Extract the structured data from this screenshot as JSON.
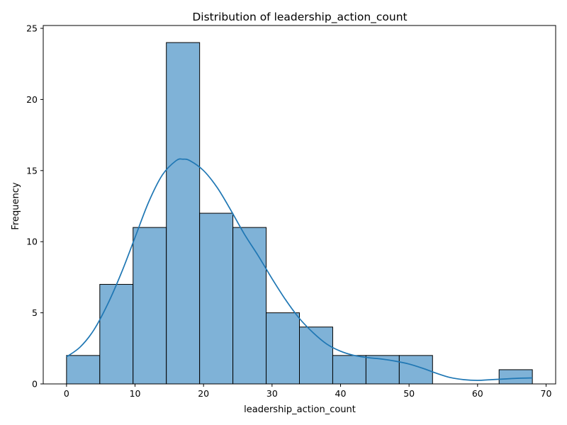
{
  "chart_data": {
    "type": "bar",
    "subtype": "histogram",
    "title": "Distribution of leadership_action_count",
    "xlabel": "leadership_action_count",
    "ylabel": "Frequency",
    "xlim": [
      -3.4,
      71.4
    ],
    "ylim": [
      0,
      25.2
    ],
    "xticks": [
      0,
      10,
      20,
      30,
      40,
      50,
      60,
      70
    ],
    "yticks": [
      0,
      5,
      10,
      15,
      20,
      25
    ],
    "grid": false,
    "bins": [
      {
        "x0": 0.0,
        "x1": 4.857,
        "count": 2
      },
      {
        "x0": 4.857,
        "x1": 9.714,
        "count": 7
      },
      {
        "x0": 9.714,
        "x1": 14.571,
        "count": 11
      },
      {
        "x0": 14.571,
        "x1": 19.429,
        "count": 24
      },
      {
        "x0": 19.429,
        "x1": 24.286,
        "count": 12
      },
      {
        "x0": 24.286,
        "x1": 29.143,
        "count": 11
      },
      {
        "x0": 29.143,
        "x1": 34.0,
        "count": 5
      },
      {
        "x0": 34.0,
        "x1": 38.857,
        "count": 4
      },
      {
        "x0": 38.857,
        "x1": 43.714,
        "count": 2
      },
      {
        "x0": 43.714,
        "x1": 48.571,
        "count": 2
      },
      {
        "x0": 48.571,
        "x1": 53.429,
        "count": 2
      },
      {
        "x0": 63.143,
        "x1": 68.0,
        "count": 1
      }
    ],
    "kde": {
      "x": [
        0,
        2,
        4,
        6,
        8,
        10,
        12,
        14,
        16,
        17,
        18,
        20,
        22,
        24,
        26,
        28,
        30,
        32,
        34,
        36,
        38,
        40,
        42,
        44,
        46,
        48,
        50,
        52,
        54,
        56,
        58,
        60,
        62,
        64,
        66,
        68
      ],
      "y": [
        1.9,
        2.6,
        3.8,
        5.6,
        7.8,
        10.3,
        12.8,
        14.7,
        15.7,
        15.8,
        15.7,
        15.0,
        13.8,
        12.2,
        10.5,
        9.0,
        7.4,
        5.9,
        4.6,
        3.6,
        2.8,
        2.3,
        2.0,
        1.85,
        1.75,
        1.6,
        1.4,
        1.1,
        0.75,
        0.45,
        0.3,
        0.25,
        0.3,
        0.35,
        0.4,
        0.42
      ]
    },
    "colors": {
      "bar_fill": "#7fb2d7",
      "bar_edge": "#000000",
      "kde_line": "#1f77b4"
    }
  }
}
